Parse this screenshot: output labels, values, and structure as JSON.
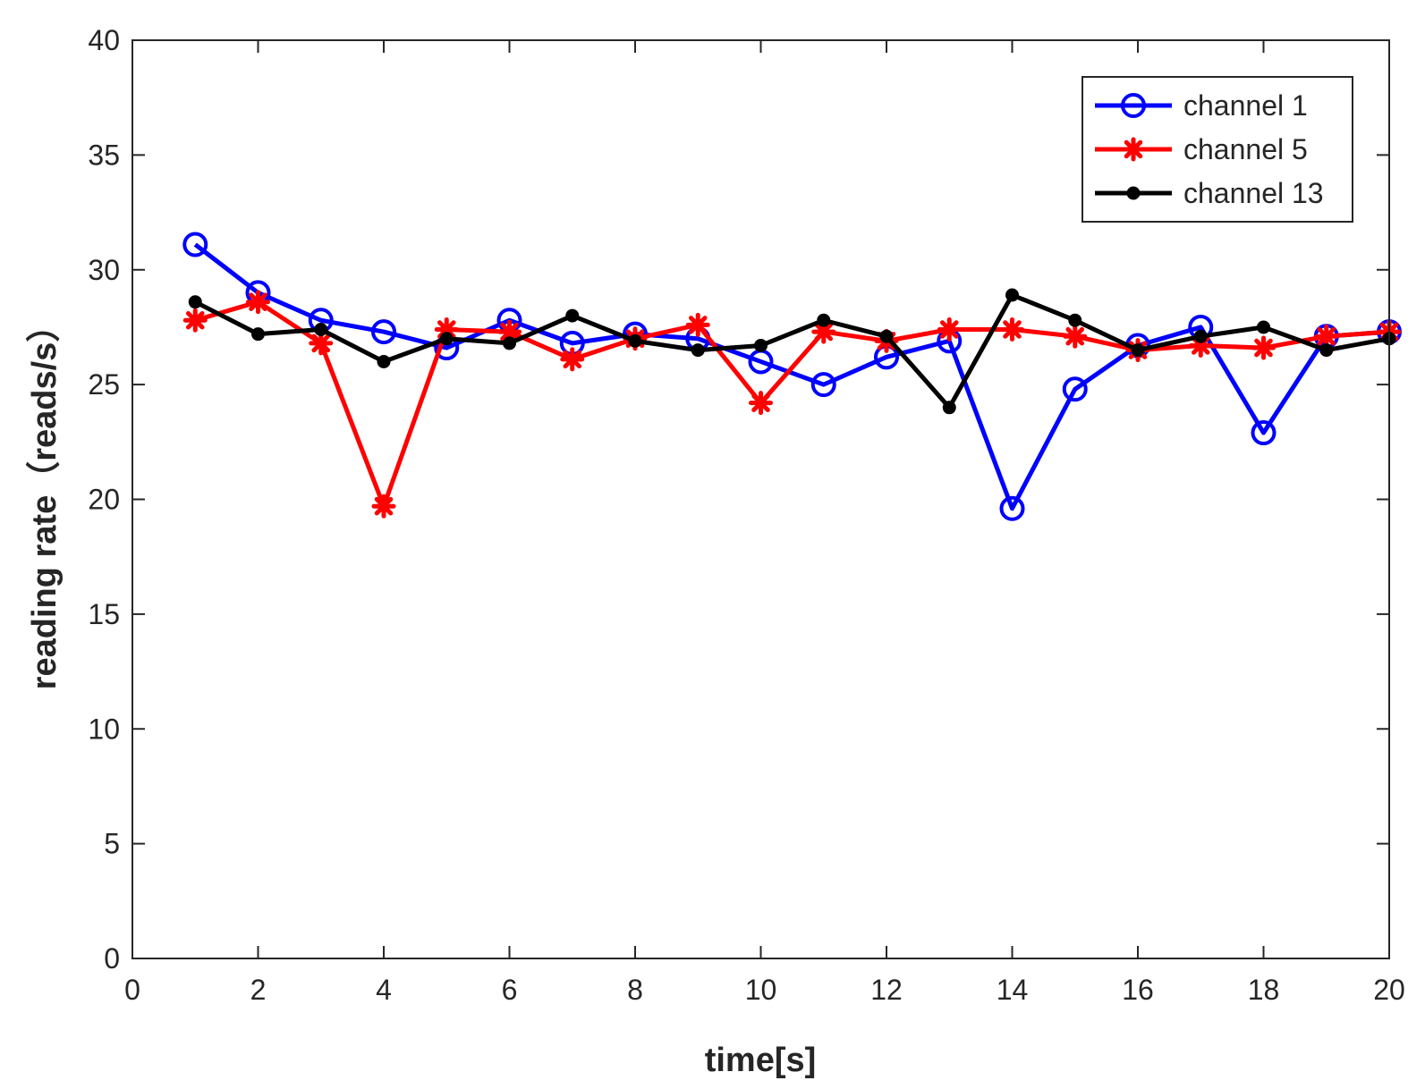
{
  "chart_data": {
    "type": "line",
    "title": "",
    "xlabel": "time[s]",
    "ylabel": "reading rate（reads/s）",
    "xlim": [
      0,
      20
    ],
    "ylim": [
      0,
      40
    ],
    "xticks": [
      0,
      2,
      4,
      6,
      8,
      10,
      12,
      14,
      16,
      18,
      20
    ],
    "yticks": [
      0,
      5,
      10,
      15,
      20,
      25,
      30,
      35,
      40
    ],
    "grid": false,
    "legend_position": "top-right",
    "x": [
      1,
      2,
      3,
      4,
      5,
      6,
      7,
      8,
      9,
      10,
      11,
      12,
      13,
      14,
      15,
      16,
      17,
      18,
      19,
      20
    ],
    "series": [
      {
        "name": "channel 1",
        "color": "#0000ff",
        "marker": "circle",
        "values": [
          31.1,
          29.0,
          27.8,
          27.3,
          26.6,
          27.8,
          26.8,
          27.2,
          27.0,
          26.0,
          25.0,
          26.2,
          26.9,
          19.6,
          24.8,
          26.7,
          27.5,
          22.9,
          27.1,
          27.3
        ]
      },
      {
        "name": "channel 5",
        "color": "#ff0000",
        "marker": "asterisk",
        "values": [
          27.8,
          28.6,
          26.8,
          19.7,
          27.4,
          27.3,
          26.1,
          27.0,
          27.6,
          24.2,
          27.3,
          26.9,
          27.4,
          27.4,
          27.1,
          26.5,
          26.7,
          26.6,
          27.1,
          27.3
        ]
      },
      {
        "name": "channel 13",
        "color": "#000000",
        "marker": "dot",
        "values": [
          28.6,
          27.2,
          27.4,
          26.0,
          27.0,
          26.8,
          28.0,
          26.9,
          26.5,
          26.7,
          27.8,
          27.1,
          24.0,
          28.9,
          27.8,
          26.5,
          27.1,
          27.5,
          26.5,
          27.0
        ]
      }
    ]
  }
}
